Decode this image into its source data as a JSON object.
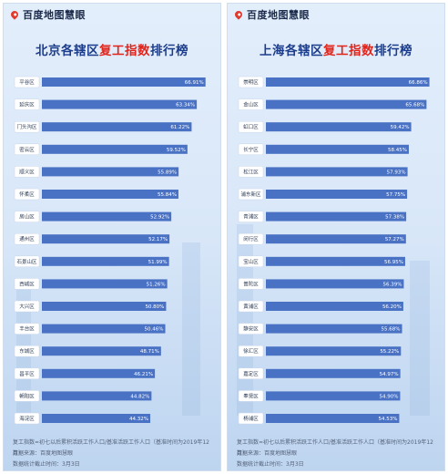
{
  "logo_text": "百度地图慧眼",
  "panels": [
    {
      "id": "beijing",
      "title_prefix": "北京各辖区",
      "title_highlight": "复工指数",
      "title_suffix": "排行榜",
      "footnote_formula": "复工指数=初七以后累积活跃工作人口/基准活跃工作人口（基准时间为2019年12月）",
      "footnote_source": "数据来源：百度地图慧眼",
      "footnote_date": "数据统计截止时间：3月3日"
    },
    {
      "id": "shanghai",
      "title_prefix": "上海各辖区",
      "title_highlight": "复工指数",
      "title_suffix": "排行榜",
      "footnote_formula": "复工指数=初七以后累积活跃工作人口/基准活跃工作人口（基准时间为2019年12月）",
      "footnote_source": "数据来源：百度地图慧眼",
      "footnote_date": "数据统计截止时间：3月3日"
    }
  ],
  "colors": {
    "bar": "#4a72c4",
    "label_box": "#ffffff",
    "title": "#1c3d8c",
    "highlight": "#e2231a"
  },
  "chart_data": [
    {
      "type": "bar",
      "orientation": "horizontal",
      "title": "北京各辖区复工指数排行榜",
      "categories": [
        "平谷区",
        "延庆区",
        "门头沟区",
        "密云区",
        "顺义区",
        "怀柔区",
        "房山区",
        "通州区",
        "石景山区",
        "西城区",
        "大兴区",
        "丰台区",
        "东城区",
        "昌平区",
        "朝阳区",
        "海淀区"
      ],
      "values": [
        66.91,
        63.34,
        61.22,
        59.52,
        55.89,
        55.84,
        52.92,
        52.17,
        51.99,
        51.26,
        50.8,
        50.46,
        48.71,
        46.21,
        44.82,
        44.32
      ],
      "value_labels": [
        "66.91%",
        "63.34%",
        "61.22%",
        "59.52%",
        "55.89%",
        "55.84%",
        "52.92%",
        "52.17%",
        "51.99%",
        "51.26%",
        "50.80%",
        "50.46%",
        "48.71%",
        "46.21%",
        "44.82%",
        "44.32%"
      ],
      "unit": "%",
      "xlim": [
        0,
        70
      ]
    },
    {
      "type": "bar",
      "orientation": "horizontal",
      "title": "上海各辖区复工指数排行榜",
      "categories": [
        "崇明区",
        "金山区",
        "虹口区",
        "长宁区",
        "松江区",
        "浦东新区",
        "青浦区",
        "闵行区",
        "宝山区",
        "普陀区",
        "黄浦区",
        "静安区",
        "徐汇区",
        "嘉定区",
        "奉贤区",
        "杨浦区"
      ],
      "values": [
        66.86,
        65.68,
        59.42,
        58.45,
        57.93,
        57.75,
        57.38,
        57.27,
        56.95,
        56.39,
        56.2,
        55.68,
        55.22,
        54.97,
        54.9,
        54.53
      ],
      "value_labels": [
        "66.86%",
        "65.68%",
        "59.42%",
        "58.45%",
        "57.93%",
        "57.75%",
        "57.38%",
        "57.27%",
        "56.95%",
        "56.39%",
        "56.20%",
        "55.68%",
        "55.22%",
        "54.97%",
        "54.90%",
        "54.53%"
      ],
      "unit": "%",
      "xlim": [
        0,
        70
      ]
    }
  ]
}
